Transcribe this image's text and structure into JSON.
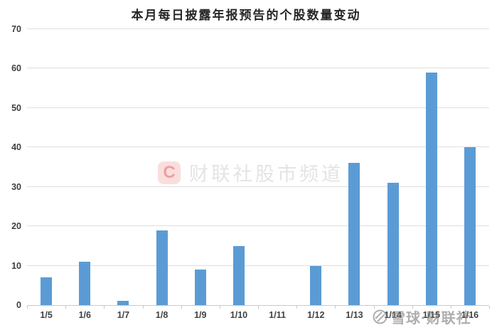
{
  "title": "本月每日披露年报预告的个股数量变动",
  "chart_data": {
    "type": "bar",
    "title": "本月每日披露年报预告的个股数量变动",
    "categories": [
      "1/5",
      "1/6",
      "1/7",
      "1/8",
      "1/9",
      "1/10",
      "1/11",
      "1/12",
      "1/13",
      "1/14",
      "1/15",
      "1/16"
    ],
    "values": [
      7,
      11,
      1,
      19,
      9,
      15,
      0,
      10,
      36,
      31,
      59,
      40
    ],
    "xlabel": "",
    "ylabel": "",
    "ylim": [
      0,
      70
    ],
    "yticks": [
      0,
      10,
      20,
      30,
      40,
      50,
      60,
      70
    ],
    "grid": true,
    "legend": "none",
    "bar_color": "#5b9bd5"
  },
  "watermarks": {
    "center": {
      "logo_letter": "C",
      "text": "财联社股市频道",
      "logo_bg_color": "#fadede",
      "logo_letter_color": "#ef9f9f",
      "text_color": "#e4e4e4"
    },
    "bottom_right": {
      "icon": "snowball-icon",
      "text": "雪球·财联社",
      "color": "#7d7d7d"
    }
  },
  "colors": {
    "background": "#ffffff",
    "title_text": "#262626",
    "axis_text": "#404040",
    "gridline": "#dedede",
    "axis_line": "#c9c9c9",
    "bar": "#5b9bd5"
  }
}
